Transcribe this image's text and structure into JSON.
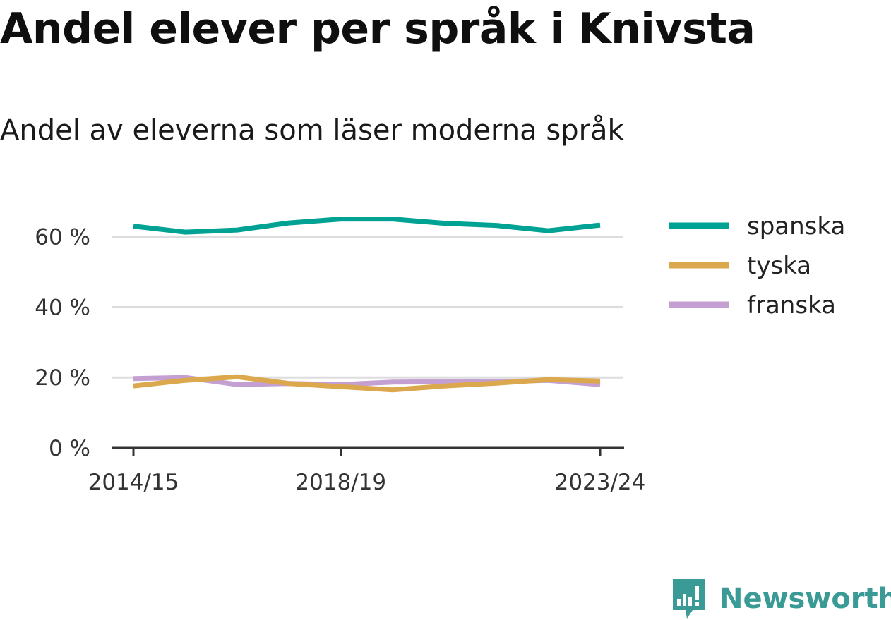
{
  "title": "Andel elever per språk i Knivsta",
  "subtitle": "Andel av eleverna som läser moderna språk",
  "brand": {
    "name": "Newsworthy",
    "color": "#3a9a95",
    "icon": "newsworthy-logo-icon"
  },
  "chart_data": {
    "type": "line",
    "x": [
      "2014/15",
      "2015/16",
      "2016/17",
      "2017/18",
      "2018/19",
      "2019/20",
      "2020/21",
      "2021/22",
      "2022/23",
      "2023/24"
    ],
    "x_tick_labels": [
      "2014/15",
      "2018/19",
      "2023/24"
    ],
    "y_ticks": [
      0,
      20,
      40,
      60
    ],
    "y_tick_labels": [
      "0 %",
      "20 %",
      "40 %",
      "60 %"
    ],
    "ylim": [
      0,
      70
    ],
    "grid": true,
    "legend_position": "right",
    "series": [
      {
        "name": "spanska",
        "color": "#00a393",
        "values": [
          63,
          61.3,
          61.9,
          63.9,
          65,
          65,
          63.8,
          63.2,
          61.7,
          63.3
        ]
      },
      {
        "name": "tyska",
        "color": "#dba84d",
        "values": [
          17.6,
          19.2,
          20.2,
          18.3,
          17.4,
          16.5,
          17.6,
          18.4,
          19.4,
          19.0
        ]
      },
      {
        "name": "franska",
        "color": "#c49fd1",
        "values": [
          19.7,
          20.0,
          18.0,
          18.3,
          18.0,
          18.7,
          18.8,
          18.8,
          19.2,
          18.0
        ]
      }
    ]
  }
}
